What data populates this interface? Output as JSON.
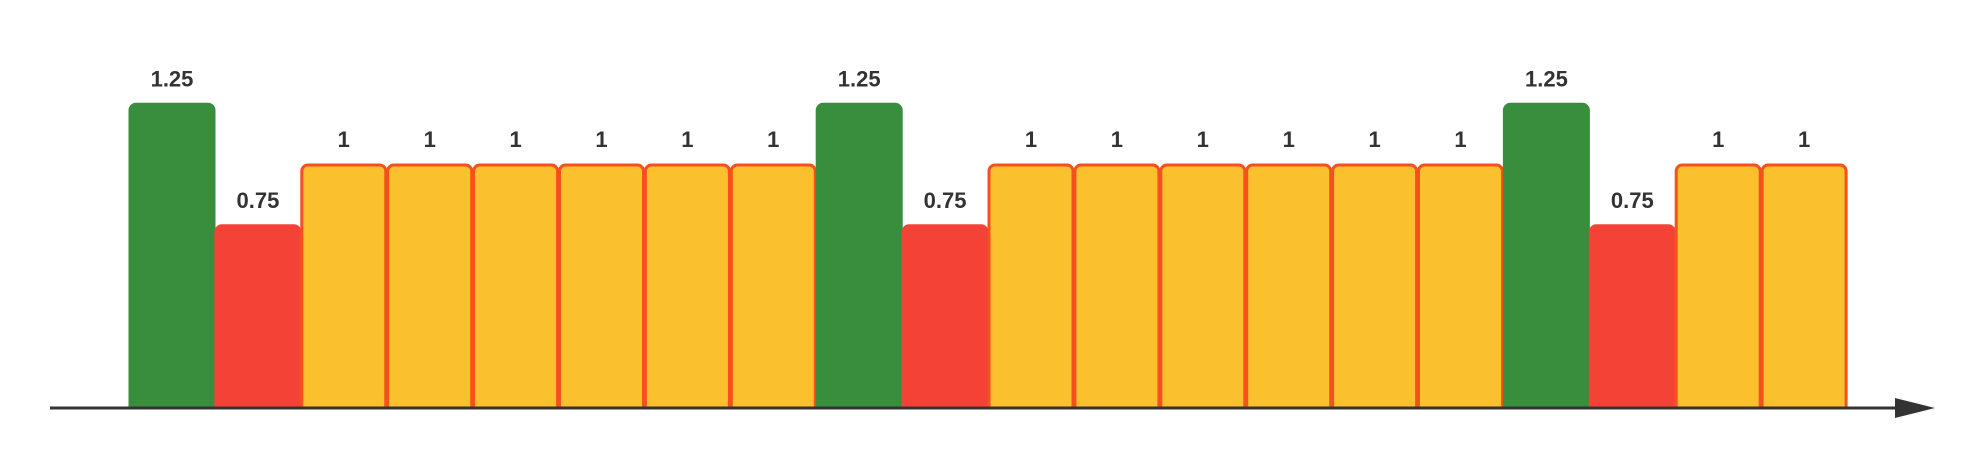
{
  "chart_data": {
    "type": "bar",
    "title": "",
    "xlabel": "",
    "ylabel": "",
    "ylim": [
      0,
      1.25
    ],
    "grid": false,
    "legend": "none",
    "values": [
      1.25,
      0.75,
      1,
      1,
      1,
      1,
      1,
      1,
      1.25,
      0.75,
      1,
      1,
      1,
      1,
      1,
      1,
      1.25,
      0.75,
      1,
      1
    ],
    "labels": [
      "1.25",
      "0.75",
      "1",
      "1",
      "1",
      "1",
      "1",
      "1",
      "1.25",
      "0.75",
      "1",
      "1",
      "1",
      "1",
      "1",
      "1",
      "1.25",
      "0.75",
      "1",
      "1"
    ],
    "colors": {
      "1.25": {
        "fill": "#388e3c",
        "stroke": "#388e3c"
      },
      "0.75": {
        "fill": "#f44336",
        "stroke": "#f44336"
      },
      "1": {
        "fill": "#fbc02d",
        "stroke": "#f4511e"
      }
    },
    "axis_color": "#333333"
  }
}
